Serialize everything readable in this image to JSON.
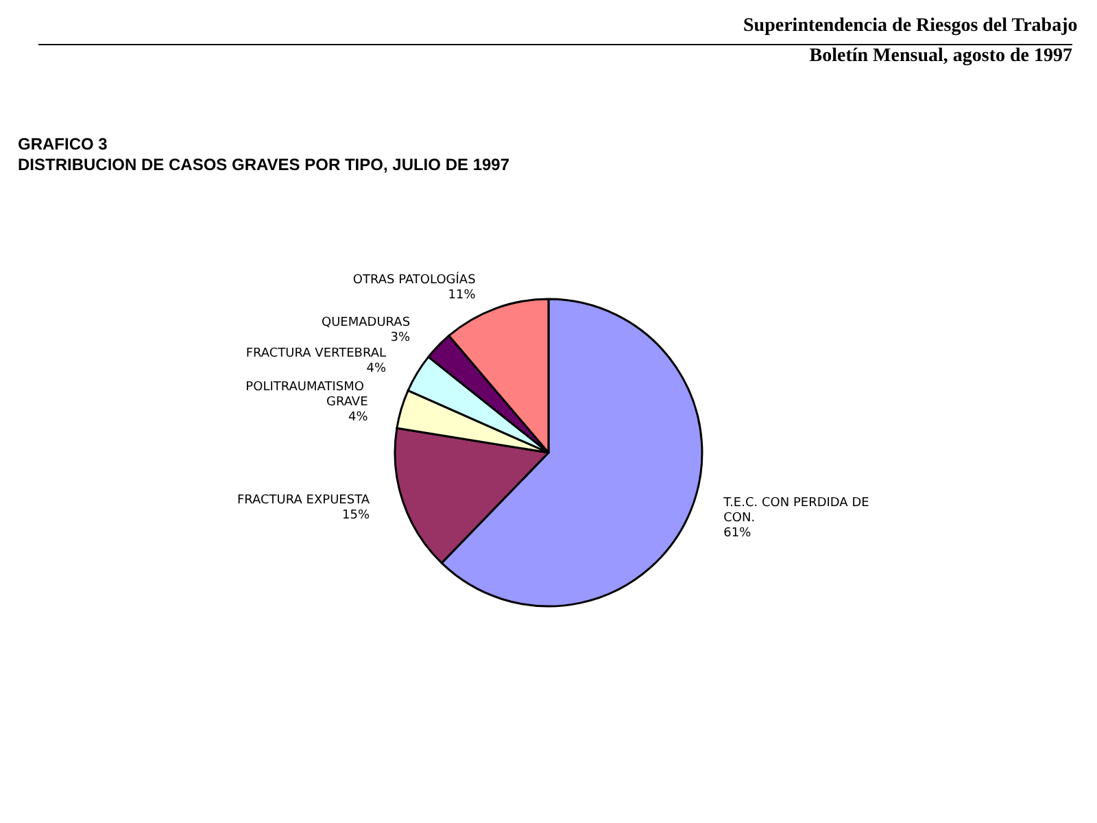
{
  "chart_data": {
    "type": "pie",
    "title": "GRAFICO 3",
    "subtitle": "DISTRIBUCION DE CASOS GRAVES POR TIPO, JULIO DE 1997",
    "annotations": [
      "Superintendencia de Riesgos del Trabajo",
      "Boletín Mensual, agosto de 1997"
    ],
    "categories": [
      "T.E.C. CON PERDIDA DE CON.",
      "FRACTURA EXPUESTA",
      "POLITRAUMATISMO GRAVE",
      "FRACTURA VERTEBRAL",
      "QUEMADURAS",
      "OTRAS PATOLOGÍAS"
    ],
    "values": [
      61,
      15,
      4,
      4,
      3,
      11
    ],
    "value_labels": [
      "61%",
      "15%",
      "4%",
      "4%",
      "3%",
      "11%"
    ],
    "colors": [
      "#9999ff",
      "#993366",
      "#ffffcc",
      "#ccffff",
      "#660066",
      "#ff8080"
    ]
  }
}
